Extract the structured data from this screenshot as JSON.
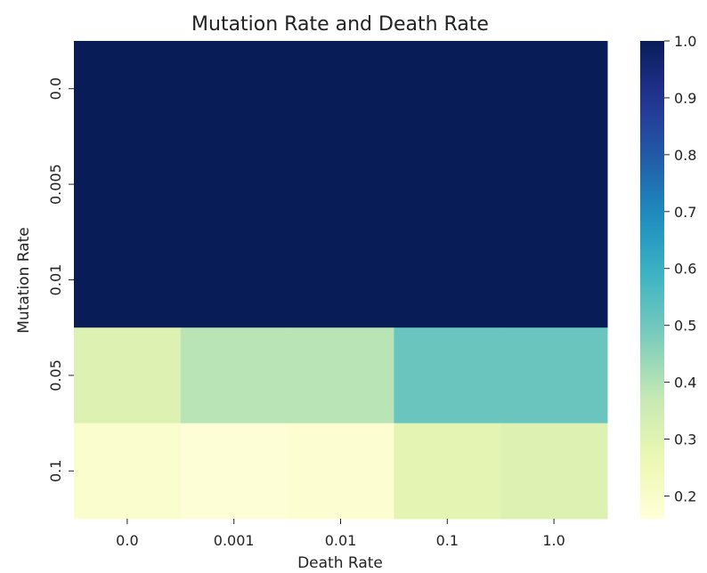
{
  "chart_data": {
    "type": "heatmap",
    "title": "Mutation Rate and Death Rate",
    "xlabel": "Death Rate",
    "ylabel": "Mutation Rate",
    "x_categories": [
      "0.0",
      "0.001",
      "0.01",
      "0.1",
      "1.0"
    ],
    "y_categories": [
      "0.0",
      "0.005",
      "0.01",
      "0.05",
      "0.1"
    ],
    "values": [
      [
        1.0,
        1.0,
        1.0,
        1.0,
        1.0
      ],
      [
        1.0,
        1.0,
        1.0,
        1.0,
        1.0
      ],
      [
        1.0,
        1.0,
        1.0,
        1.0,
        1.0
      ],
      [
        0.31,
        0.39,
        0.39,
        0.51,
        0.51
      ],
      [
        0.19,
        0.17,
        0.18,
        0.29,
        0.31
      ]
    ],
    "colorbar": {
      "colormap": "YlGnBu",
      "range": [
        0.16,
        1.0
      ],
      "ticks": [
        "0.2",
        "0.3",
        "0.4",
        "0.5",
        "0.6",
        "0.7",
        "0.8",
        "0.9",
        "1.0"
      ]
    }
  }
}
